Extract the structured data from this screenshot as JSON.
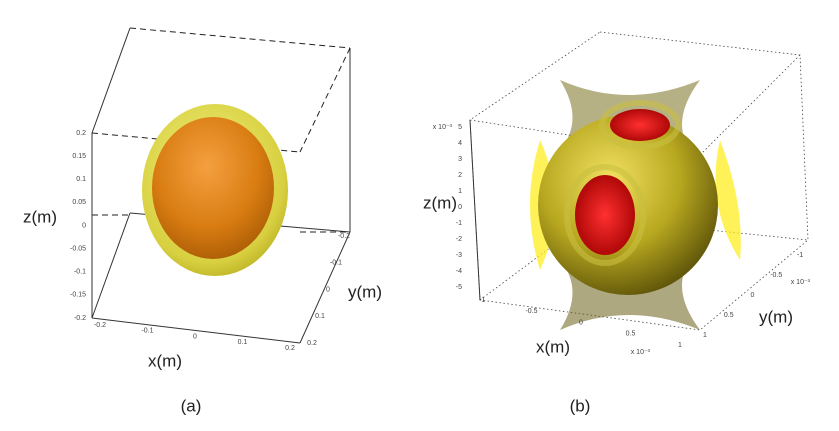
{
  "panels": [
    {
      "caption": "(a)",
      "x_label": "x(m)",
      "y_label": "y(m)",
      "z_label": "z(m)",
      "z_ticks": [
        "0.2",
        "0.15",
        "0.1",
        "0.05",
        "0",
        "-0.05",
        "-0.1",
        "-0.15",
        "-0.2"
      ],
      "x_ticks": [
        "-0.2",
        "-0.1",
        "0",
        "0.1",
        "0.2"
      ],
      "y_ticks": [
        "0.2",
        "0.1",
        "0",
        "-0.1",
        "-0.2"
      ]
    },
    {
      "caption": "(b)",
      "x_label": "x(m)",
      "y_label": "y(m)",
      "z_label": "z(m)",
      "z_ticks": [
        "5",
        "4",
        "3",
        "2",
        "1",
        "0",
        "-1",
        "-2",
        "-3",
        "-4",
        "-5"
      ],
      "x_ticks": [
        "-1",
        "-0.5",
        "0",
        "0.5",
        "1"
      ],
      "y_ticks": [
        "1",
        "0.5",
        "0",
        "-0.5",
        "-1"
      ],
      "z_multiplier": "x 10⁻³",
      "x_multiplier": "x 10⁻³",
      "y_multiplier": "x 10⁻³"
    }
  ]
}
